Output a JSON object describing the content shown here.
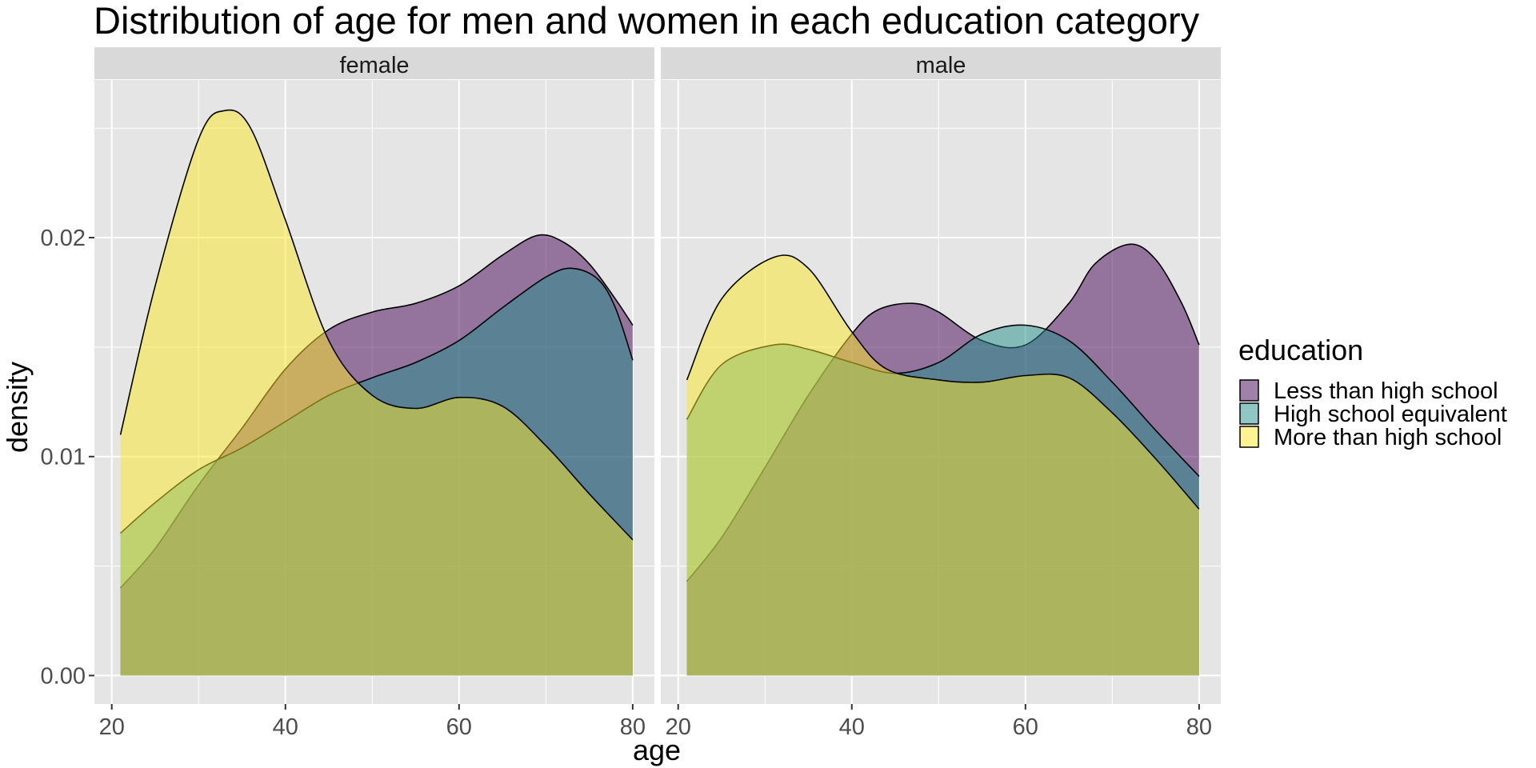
{
  "chart_data": {
    "type": "area",
    "subtype": "density",
    "title": "Distribution of age for men and women in each education category",
    "xlabel": "age",
    "ylabel": "density",
    "xlim": [
      18,
      82.5
    ],
    "ylim": [
      -0.0013,
      0.0272
    ],
    "x_ticks": [
      20,
      40,
      60,
      80
    ],
    "y_ticks": [
      0.0,
      0.01,
      0.02
    ],
    "y_tick_labels": [
      "0.00",
      "0.01",
      "0.02"
    ],
    "grid": true,
    "legend": {
      "title": "education",
      "position": "right",
      "entries": [
        "Less than high school",
        "High school equivalent",
        "More than high school"
      ]
    },
    "colors": {
      "Less than high school": "#440154",
      "High school equivalent": "#21908C",
      "More than high school": "#FDE725",
      "panel_background": "#E5E5E5",
      "strip_background": "#D9D9D9",
      "grid": "#FFFFFF"
    },
    "fill_alpha": 0.5,
    "series_names": [
      "Less than high school",
      "High school equivalent",
      "More than high school"
    ],
    "panels": [
      {
        "label": "female",
        "series": [
          {
            "name": "Less than high school",
            "x": [
              21,
              25,
              30,
              35,
              40,
              45,
              50,
              55,
              60,
              65,
              69,
              72,
              75,
              78,
              80
            ],
            "y": [
              0.004,
              0.0058,
              0.0087,
              0.0113,
              0.014,
              0.0158,
              0.0166,
              0.017,
              0.0178,
              0.0192,
              0.0201,
              0.0198,
              0.0188,
              0.0172,
              0.016
            ]
          },
          {
            "name": "High school equivalent",
            "x": [
              21,
              25,
              30,
              35,
              40,
              45,
              50,
              55,
              60,
              65,
              70,
              73,
              76,
              78,
              80
            ],
            "y": [
              0.0065,
              0.0079,
              0.0094,
              0.0104,
              0.0116,
              0.0128,
              0.0136,
              0.0143,
              0.0153,
              0.0168,
              0.0182,
              0.0186,
              0.0181,
              0.0168,
              0.0144
            ]
          },
          {
            "name": "More than high school",
            "x": [
              21,
              25,
              30,
              33,
              36,
              40,
              45,
              50,
              55,
              60,
              65,
              70,
              75,
              80
            ],
            "y": [
              0.011,
              0.0178,
              0.0245,
              0.0258,
              0.025,
              0.0208,
              0.0153,
              0.0128,
              0.0122,
              0.0127,
              0.0123,
              0.0105,
              0.0083,
              0.0062
            ]
          }
        ]
      },
      {
        "label": "male",
        "series": [
          {
            "name": "Less than high school",
            "x": [
              21,
              25,
              30,
              35,
              40,
              43,
              47,
              50,
              55,
              60,
              65,
              68,
              72,
              75,
              78,
              80
            ],
            "y": [
              0.0043,
              0.0063,
              0.0095,
              0.0128,
              0.0156,
              0.0167,
              0.017,
              0.0166,
              0.0153,
              0.0151,
              0.017,
              0.0188,
              0.0197,
              0.019,
              0.017,
              0.0151
            ]
          },
          {
            "name": "High school equivalent",
            "x": [
              21,
              25,
              31,
              35,
              40,
              45,
              50,
              55,
              60,
              65,
              70,
              75,
              80
            ],
            "y": [
              0.0117,
              0.0142,
              0.0151,
              0.0149,
              0.0143,
              0.0138,
              0.0143,
              0.0156,
              0.016,
              0.0153,
              0.0134,
              0.0112,
              0.0091
            ]
          },
          {
            "name": "More than high school",
            "x": [
              21,
              25,
              31,
              35,
              40,
              44,
              50,
              55,
              60,
              65,
              70,
              75,
              80
            ],
            "y": [
              0.0135,
              0.0172,
              0.0191,
              0.0186,
              0.0157,
              0.014,
              0.0135,
              0.0134,
              0.0137,
              0.0136,
              0.012,
              0.0099,
              0.0076
            ]
          }
        ]
      }
    ]
  }
}
